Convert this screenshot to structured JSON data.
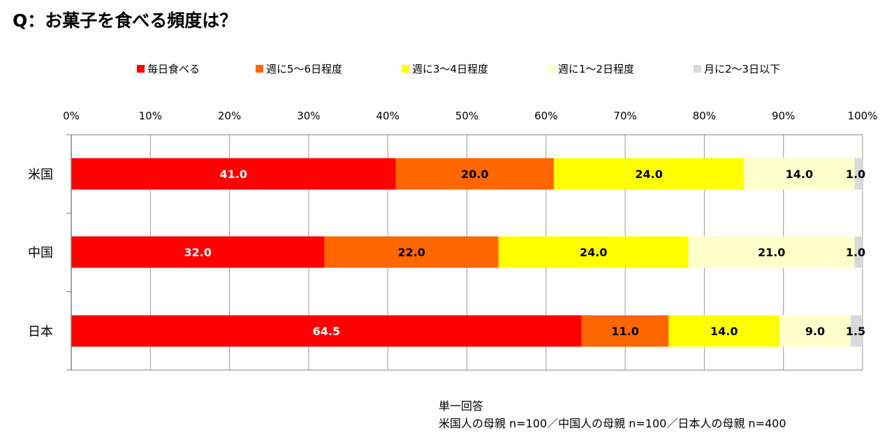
{
  "title": "Q：お菓子を食べる頻度は？",
  "note": {
    "line1": "単一回答",
    "line2": "米国人の母親 n=100／中国人の母親 n=100／日本人の母親 n=400"
  },
  "chart_data": {
    "type": "bar",
    "orientation": "horizontal",
    "stacked": "percent",
    "categories": [
      "米国",
      "中国",
      "日本"
    ],
    "series": [
      {
        "name": "毎日食べる",
        "color": "#ff0000",
        "label_color": "#ffffff",
        "values": [
          41.0,
          32.0,
          64.5
        ]
      },
      {
        "name": "週に5～6日程度",
        "color": "#ff6600",
        "label_color": "#000000",
        "values": [
          20.0,
          22.0,
          11.0
        ]
      },
      {
        "name": "週に3～4日程度",
        "color": "#ffff00",
        "label_color": "#000000",
        "values": [
          24.0,
          24.0,
          14.0
        ]
      },
      {
        "name": "週に1～2日程度",
        "color": "#ffffcc",
        "label_color": "#000000",
        "values": [
          14.0,
          21.0,
          9.0
        ]
      },
      {
        "name": "月に2～3日以下",
        "color": "#d9d9d9",
        "label_color": "#000000",
        "values": [
          1.0,
          1.0,
          1.5
        ]
      }
    ],
    "data_labels": [
      [
        "41.0",
        "20.0",
        "24.0",
        "14.0",
        "1.0"
      ],
      [
        "32.0",
        "22.0",
        "24.0",
        "21.0",
        "1.0"
      ],
      [
        "64.5",
        "11.0",
        "14.0",
        "9.0",
        "1.5"
      ]
    ],
    "xlim": [
      0,
      100
    ],
    "xticks": [
      "0%",
      "10%",
      "20%",
      "30%",
      "40%",
      "50%",
      "60%",
      "70%",
      "80%",
      "90%",
      "100%"
    ],
    "xaxis_position": "top",
    "grid": true,
    "legend": "top"
  }
}
